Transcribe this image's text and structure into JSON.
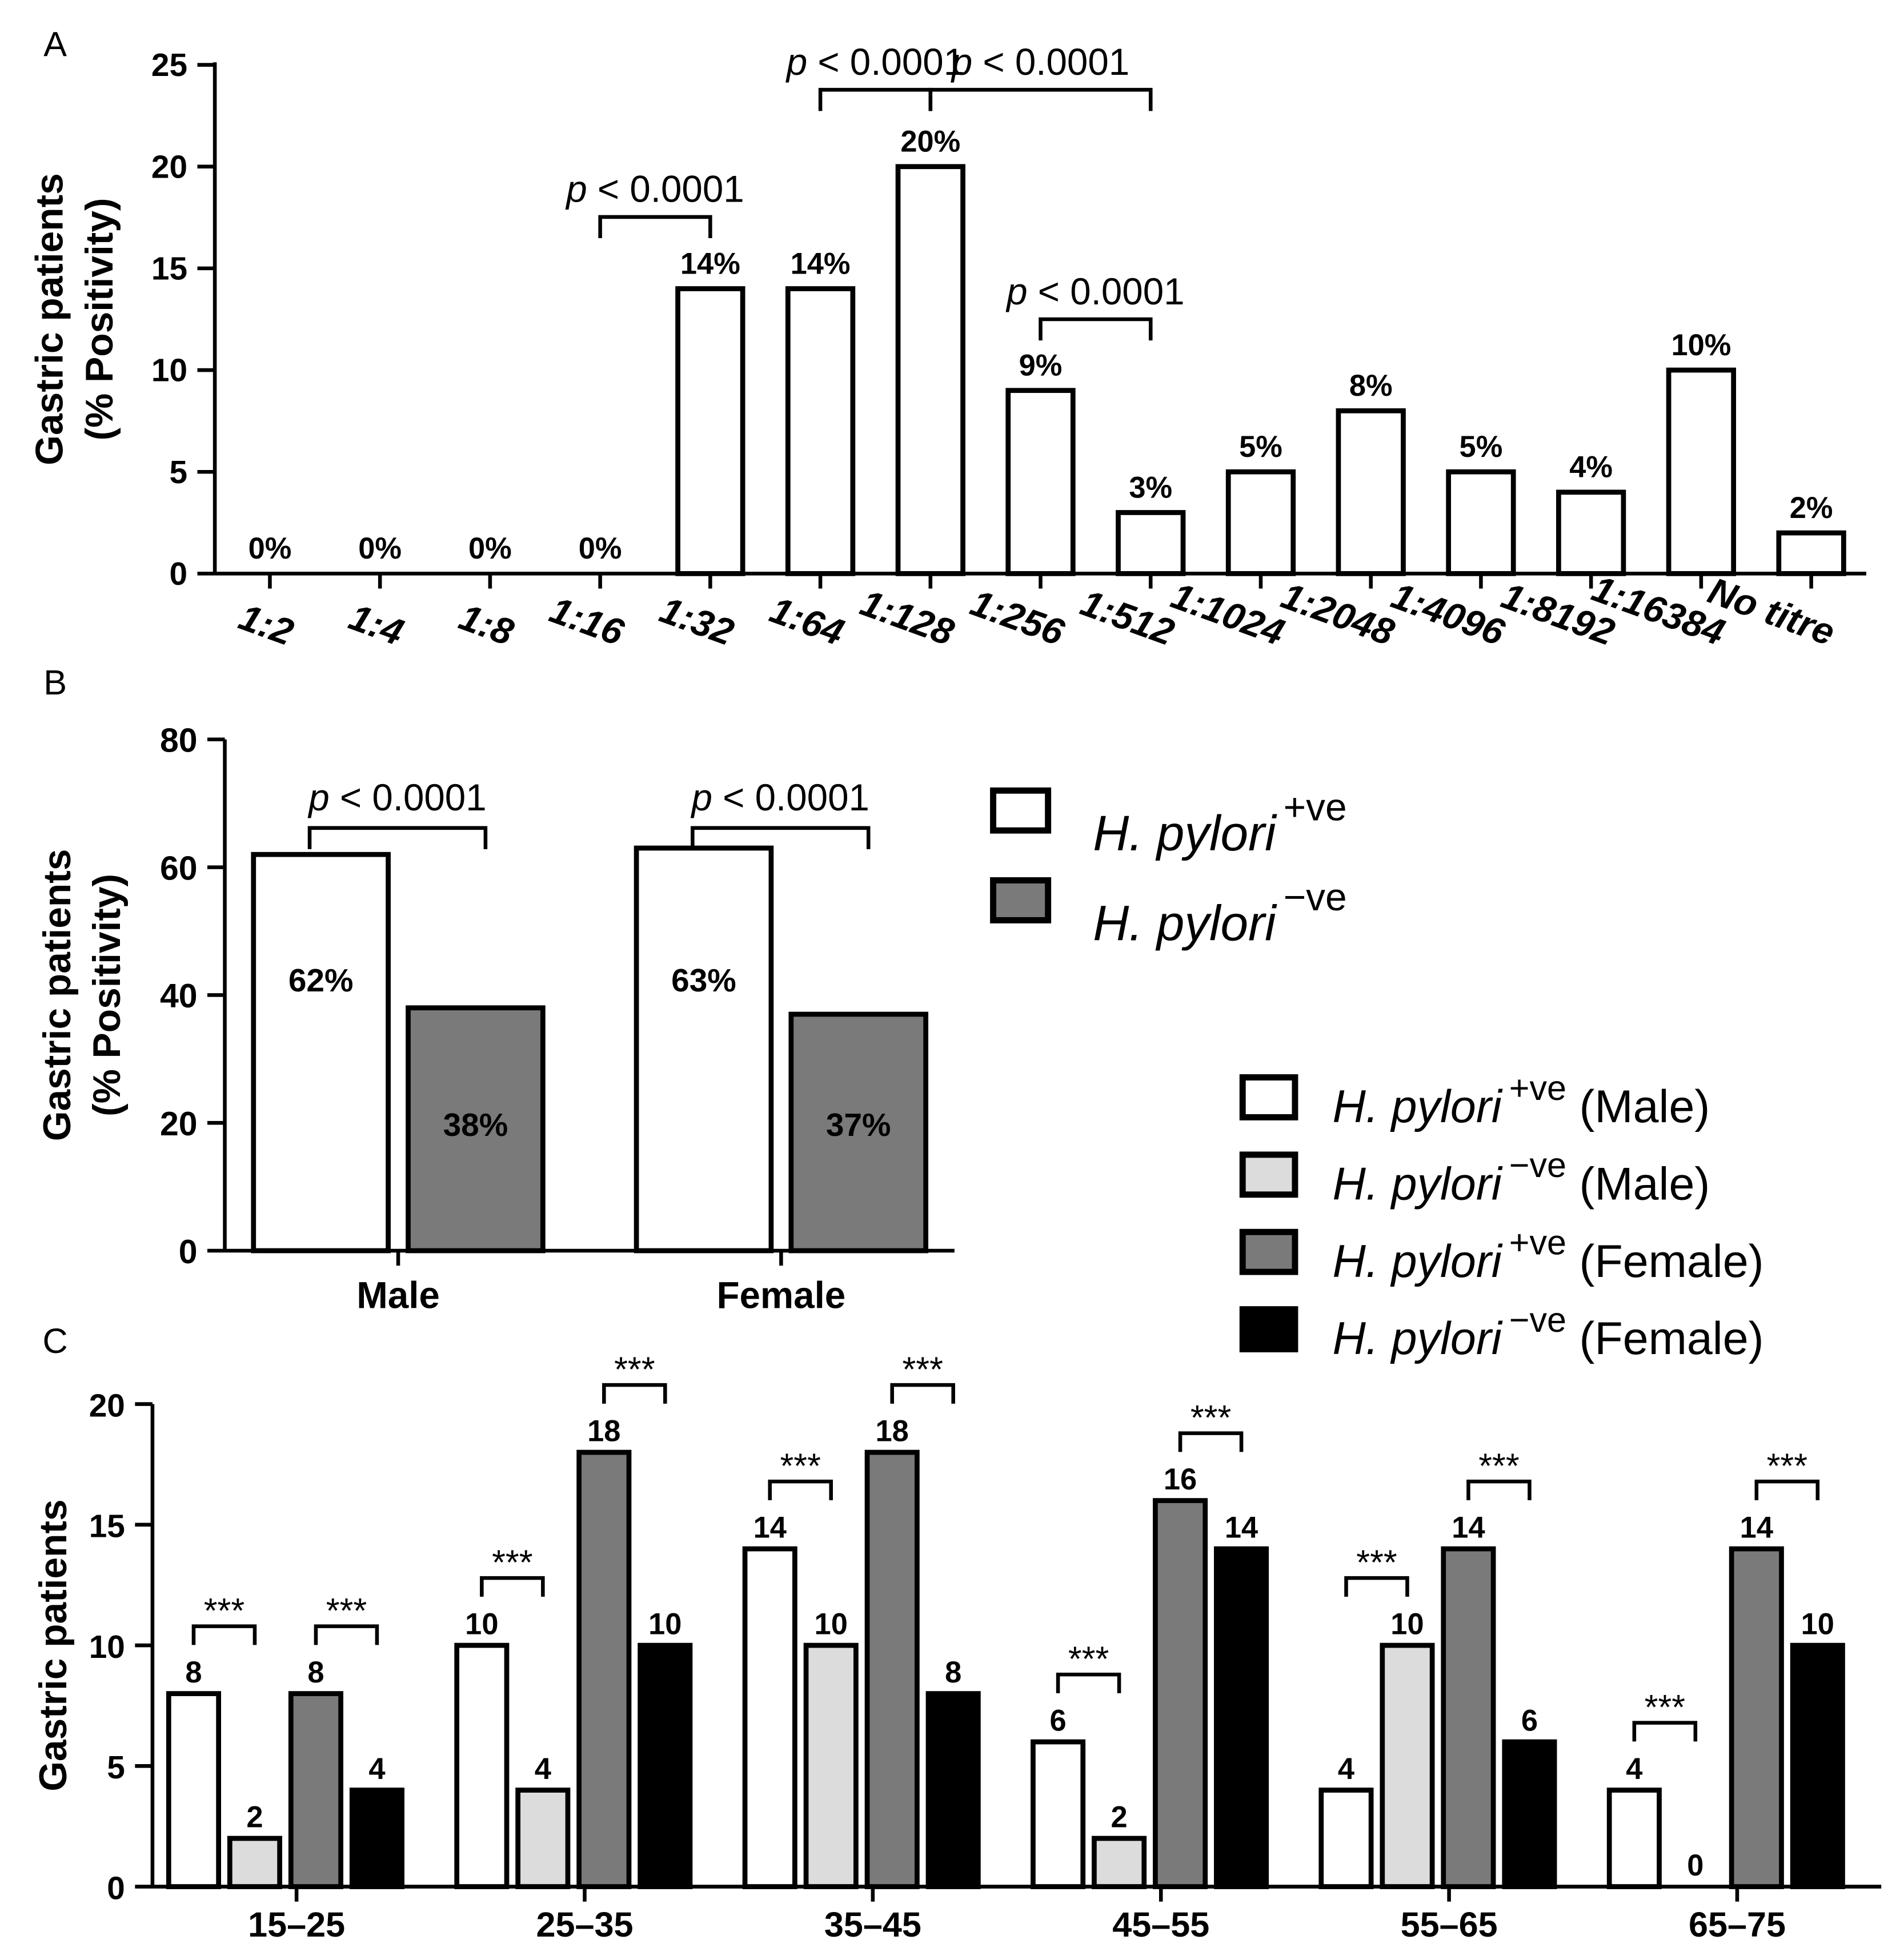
{
  "panels": [
    {
      "letter": "A"
    },
    {
      "letter": "B"
    },
    {
      "letter": "C"
    }
  ],
  "colors": {
    "white": "#ffffff",
    "light_gray": "#dcdcdc",
    "dark_gray": "#7a7a7a",
    "black": "#000000",
    "stroke": "#000000"
  },
  "chart_data": [
    {
      "panel": "A",
      "type": "bar",
      "title": "",
      "xlabel": "",
      "ylabel": [
        "Gastric patients",
        "(% Positivity)"
      ],
      "ylim": [
        0,
        25
      ],
      "yticks": [
        0,
        5,
        10,
        15,
        20,
        25
      ],
      "categories": [
        "1:2",
        "1:4",
        "1:8",
        "1:16",
        "1:32",
        "1:64",
        "1:128",
        "1:256",
        "1:512",
        "1:1024",
        "1:2048",
        "1:4096",
        "1:8192",
        "1:16384",
        "No titre"
      ],
      "values": [
        0,
        0,
        0,
        0,
        14,
        14,
        20,
        9,
        3,
        5,
        8,
        5,
        4,
        10,
        2
      ],
      "data_labels": [
        "0%",
        "0%",
        "0%",
        "0%",
        "14%",
        "14%",
        "20%",
        "9%",
        "3%",
        "5%",
        "8%",
        "5%",
        "4%",
        "10%",
        "2%"
      ],
      "bar_color": "white",
      "annotations": [
        {
          "from": 3,
          "to": 4,
          "p_prefix": "p",
          "text": " < 0.0001"
        },
        {
          "from": 5,
          "to": 6,
          "p_prefix": "p",
          "text": " < 0.0001"
        },
        {
          "from": 6,
          "to": 8,
          "p_prefix": "p",
          "text": " < 0.0001"
        },
        {
          "from": 7,
          "to": 8,
          "p_prefix": "p",
          "text": " < 0.0001"
        }
      ]
    },
    {
      "panel": "B",
      "type": "bar",
      "title": "",
      "xlabel": "",
      "ylabel": [
        "Gastric patients",
        "(% Positivity)"
      ],
      "ylim": [
        0,
        80
      ],
      "yticks": [
        0,
        20,
        40,
        60,
        80
      ],
      "categories": [
        "Male",
        "Female"
      ],
      "series": [
        {
          "name": "H. pylori +ve",
          "base": "H. pylori",
          "sup": "+ve",
          "color": "white",
          "values": [
            62,
            63
          ],
          "data_labels": [
            "62%",
            "63%"
          ]
        },
        {
          "name": "H. pylori −ve",
          "base": "H. pylori",
          "sup": "−ve",
          "color": "dark_gray",
          "values": [
            38,
            37
          ],
          "data_labels": [
            "38%",
            "37%"
          ]
        }
      ],
      "annotations": [
        {
          "group": 0,
          "p_prefix": "p",
          "text": " < 0.0001"
        },
        {
          "group": 1,
          "p_prefix": "p",
          "text": " < 0.0001"
        }
      ],
      "legend_position": "right"
    },
    {
      "panel": "C",
      "type": "bar",
      "title": "",
      "xlabel": "",
      "ylabel": [
        "Gastric patients"
      ],
      "ylim": [
        0,
        20
      ],
      "yticks": [
        0,
        5,
        10,
        15,
        20
      ],
      "categories": [
        "15–25",
        "25–35",
        "35–45",
        "45–55",
        "55–65",
        "65–75"
      ],
      "series": [
        {
          "name": "H. pylori +ve (Male)",
          "base": "H. pylori",
          "sup": "+ve",
          "suffix": " (Male)",
          "color": "white",
          "values": [
            8,
            10,
            14,
            6,
            4,
            4
          ]
        },
        {
          "name": "H. pylori −ve (Male)",
          "base": "H. pylori",
          "sup": "−ve",
          "suffix": " (Male)",
          "color": "light_gray",
          "values": [
            2,
            4,
            10,
            2,
            10,
            0
          ]
        },
        {
          "name": "H. pylori +ve (Female)",
          "base": "H. pylori",
          "sup": "+ve",
          "suffix": " (Female)",
          "color": "dark_gray",
          "values": [
            8,
            18,
            18,
            16,
            14,
            14
          ]
        },
        {
          "name": "H. pylori −ve (Female)",
          "base": "H. pylori",
          "sup": "−ve",
          "suffix": " (Female)",
          "color": "black",
          "values": [
            4,
            10,
            8,
            14,
            6,
            10
          ]
        }
      ],
      "significance_label": "***",
      "legend_position": "top-right"
    }
  ]
}
